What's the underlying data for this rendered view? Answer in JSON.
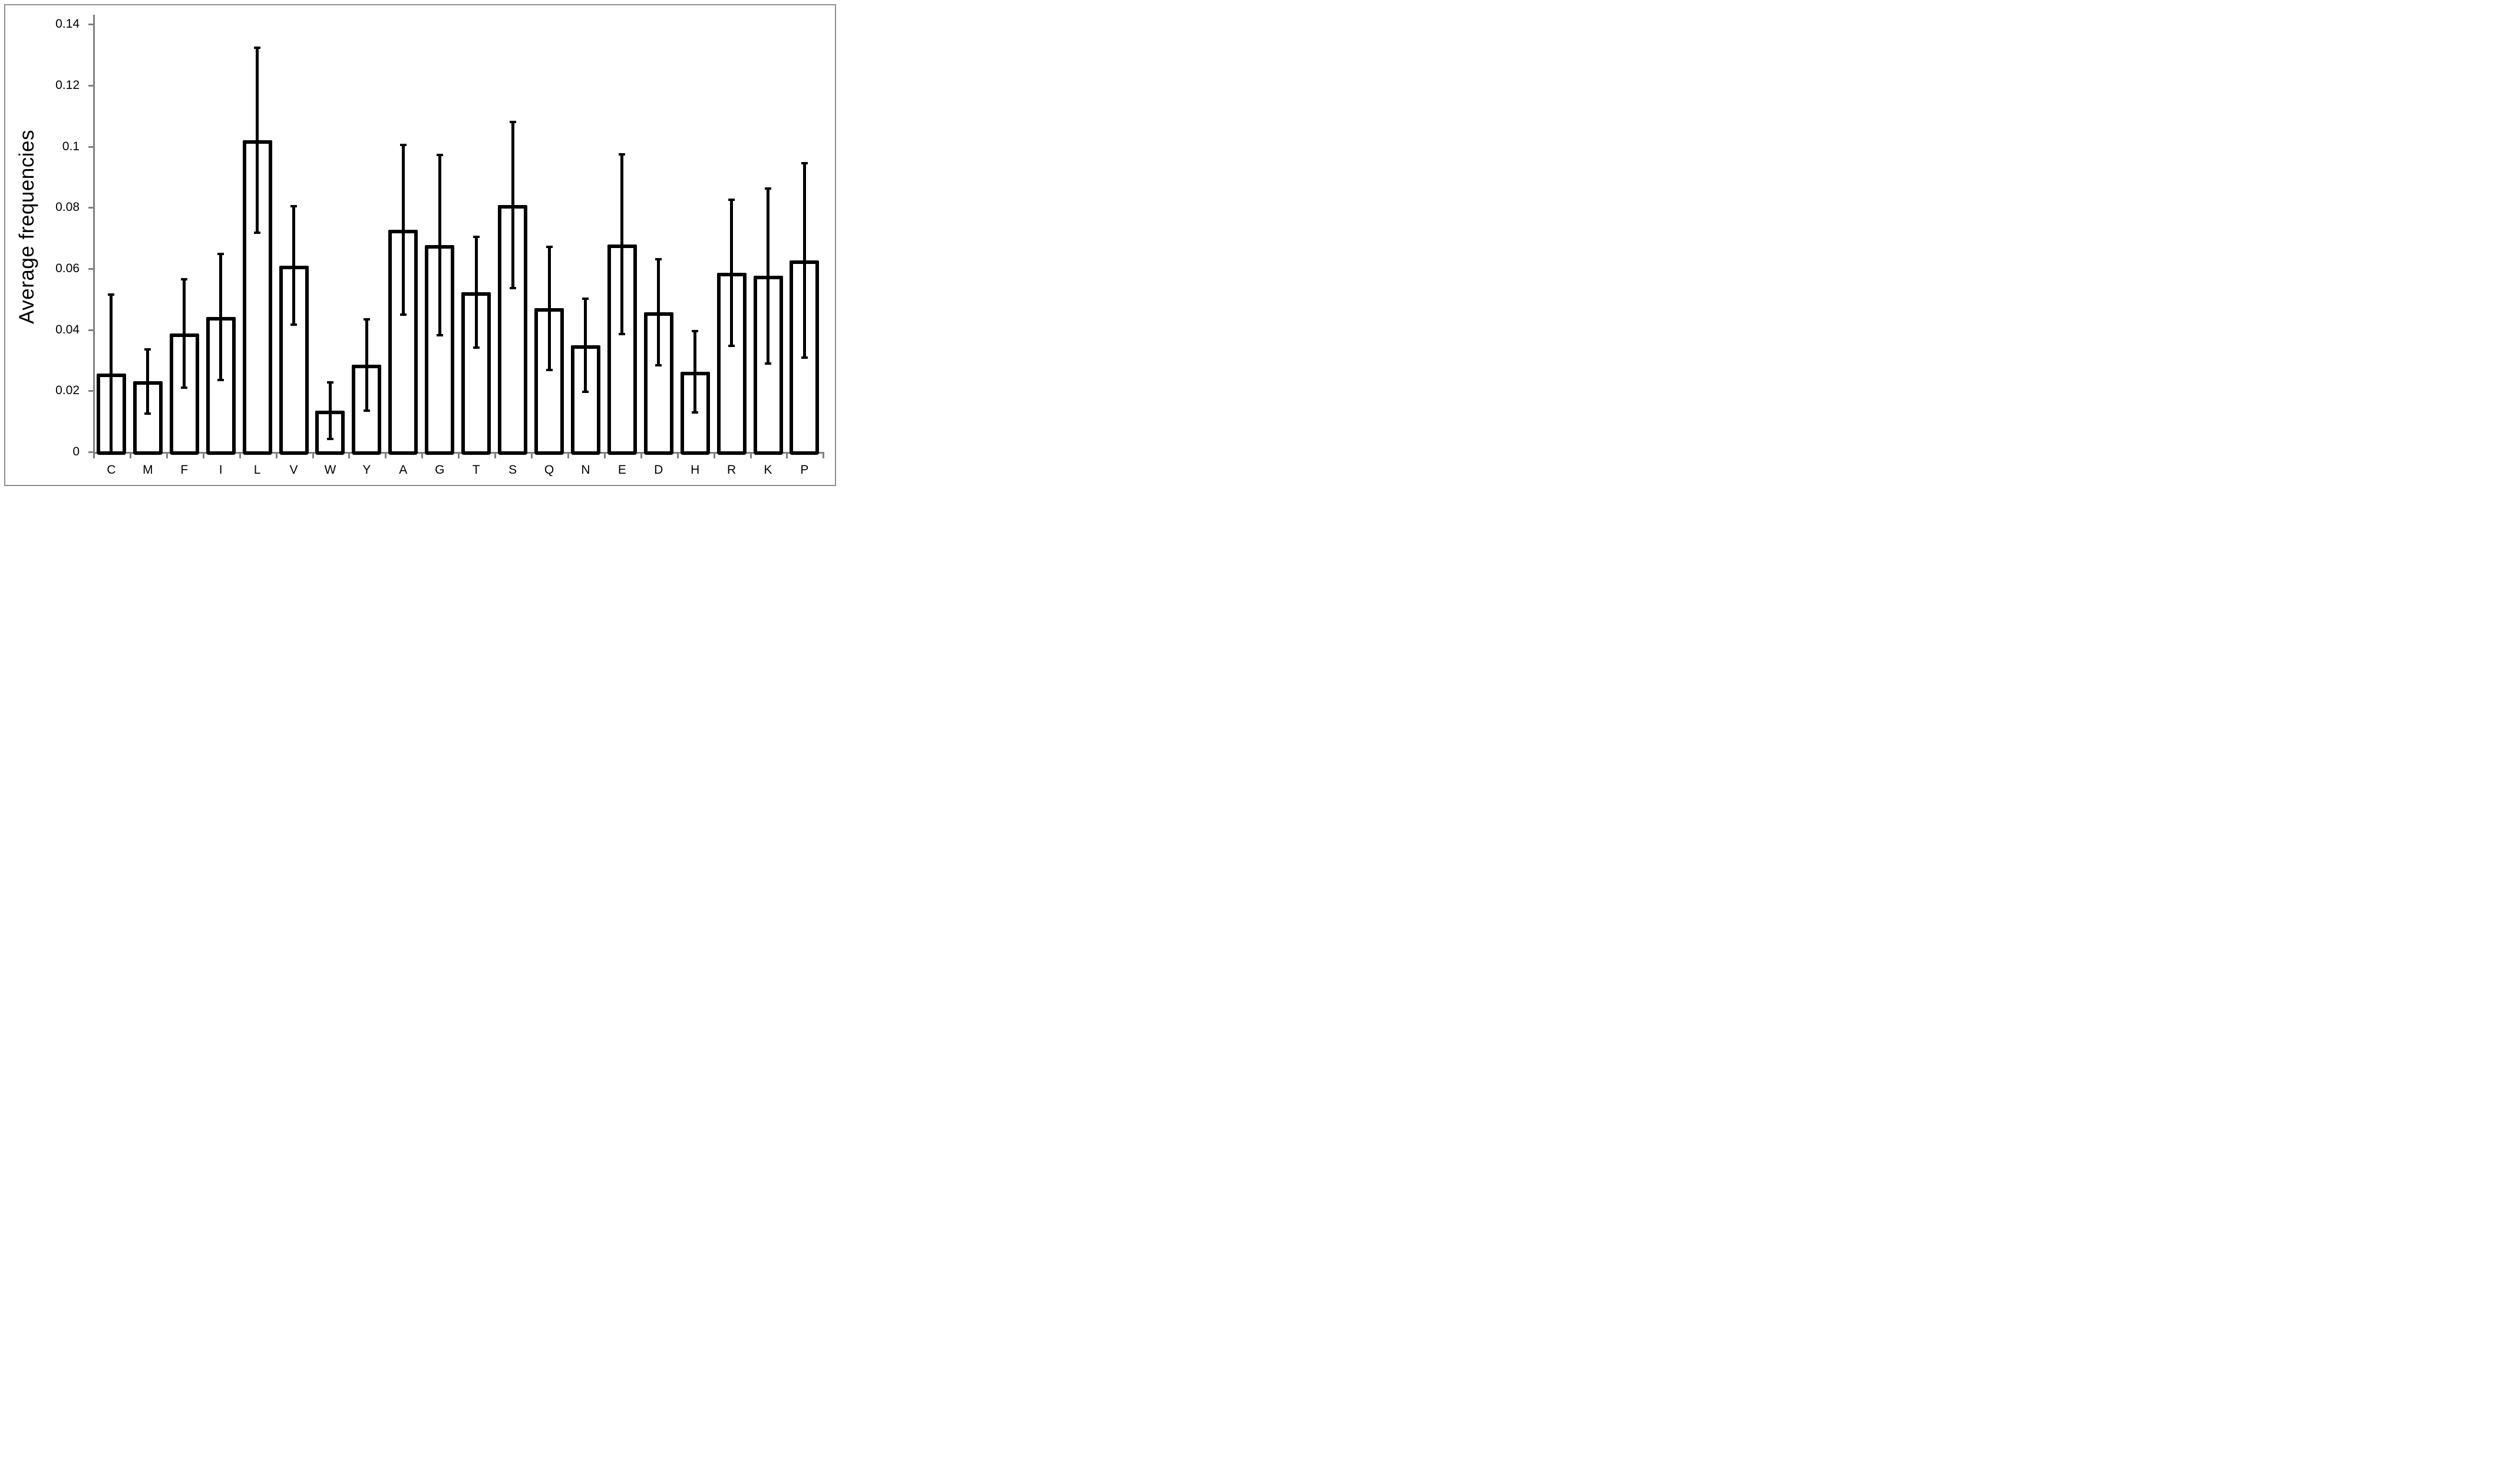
{
  "chart_data": {
    "type": "bar",
    "title": "",
    "ylabel": "Average frequencies",
    "xlabel": "",
    "categories": [
      "C",
      "M",
      "F",
      "I",
      "L",
      "V",
      "W",
      "Y",
      "A",
      "G",
      "T",
      "S",
      "Q",
      "N",
      "E",
      "D",
      "H",
      "R",
      "K",
      "P"
    ],
    "values": [
      0.0257,
      0.0231,
      0.0388,
      0.0442,
      0.102,
      0.061,
      0.0135,
      0.0285,
      0.0728,
      0.0678,
      0.0523,
      0.0808,
      0.047,
      0.0349,
      0.068,
      0.0457,
      0.0262,
      0.0587,
      0.0576,
      0.0627
    ],
    "errors": [
      0.0262,
      0.0109,
      0.0182,
      0.021,
      0.0307,
      0.0198,
      0.0096,
      0.0153,
      0.0282,
      0.0299,
      0.0185,
      0.0276,
      0.0206,
      0.0157,
      0.0298,
      0.0178,
      0.0137,
      0.0243,
      0.0291,
      0.0322
    ],
    "error_bars": "symmetric, with caps; lower whisker clipped at 0 when mean minus error is below 0",
    "ylim": [
      0,
      0.14
    ],
    "yticks": [
      0,
      0.02,
      0.04,
      0.06,
      0.08,
      0.1,
      0.12,
      0.14
    ],
    "ytick_labels": [
      "0",
      "0.02",
      "0.04",
      "0.06",
      "0.08",
      "0.1",
      "0.12",
      "0.14"
    ],
    "grid": false,
    "legend": false,
    "bar_fill": "#ffffff",
    "bar_border_color": "#000000",
    "error_color": "#000000",
    "axis_color": "#808080",
    "frame_color": "#8f8f8f",
    "text_color": "#000000",
    "background": "#ffffff"
  }
}
